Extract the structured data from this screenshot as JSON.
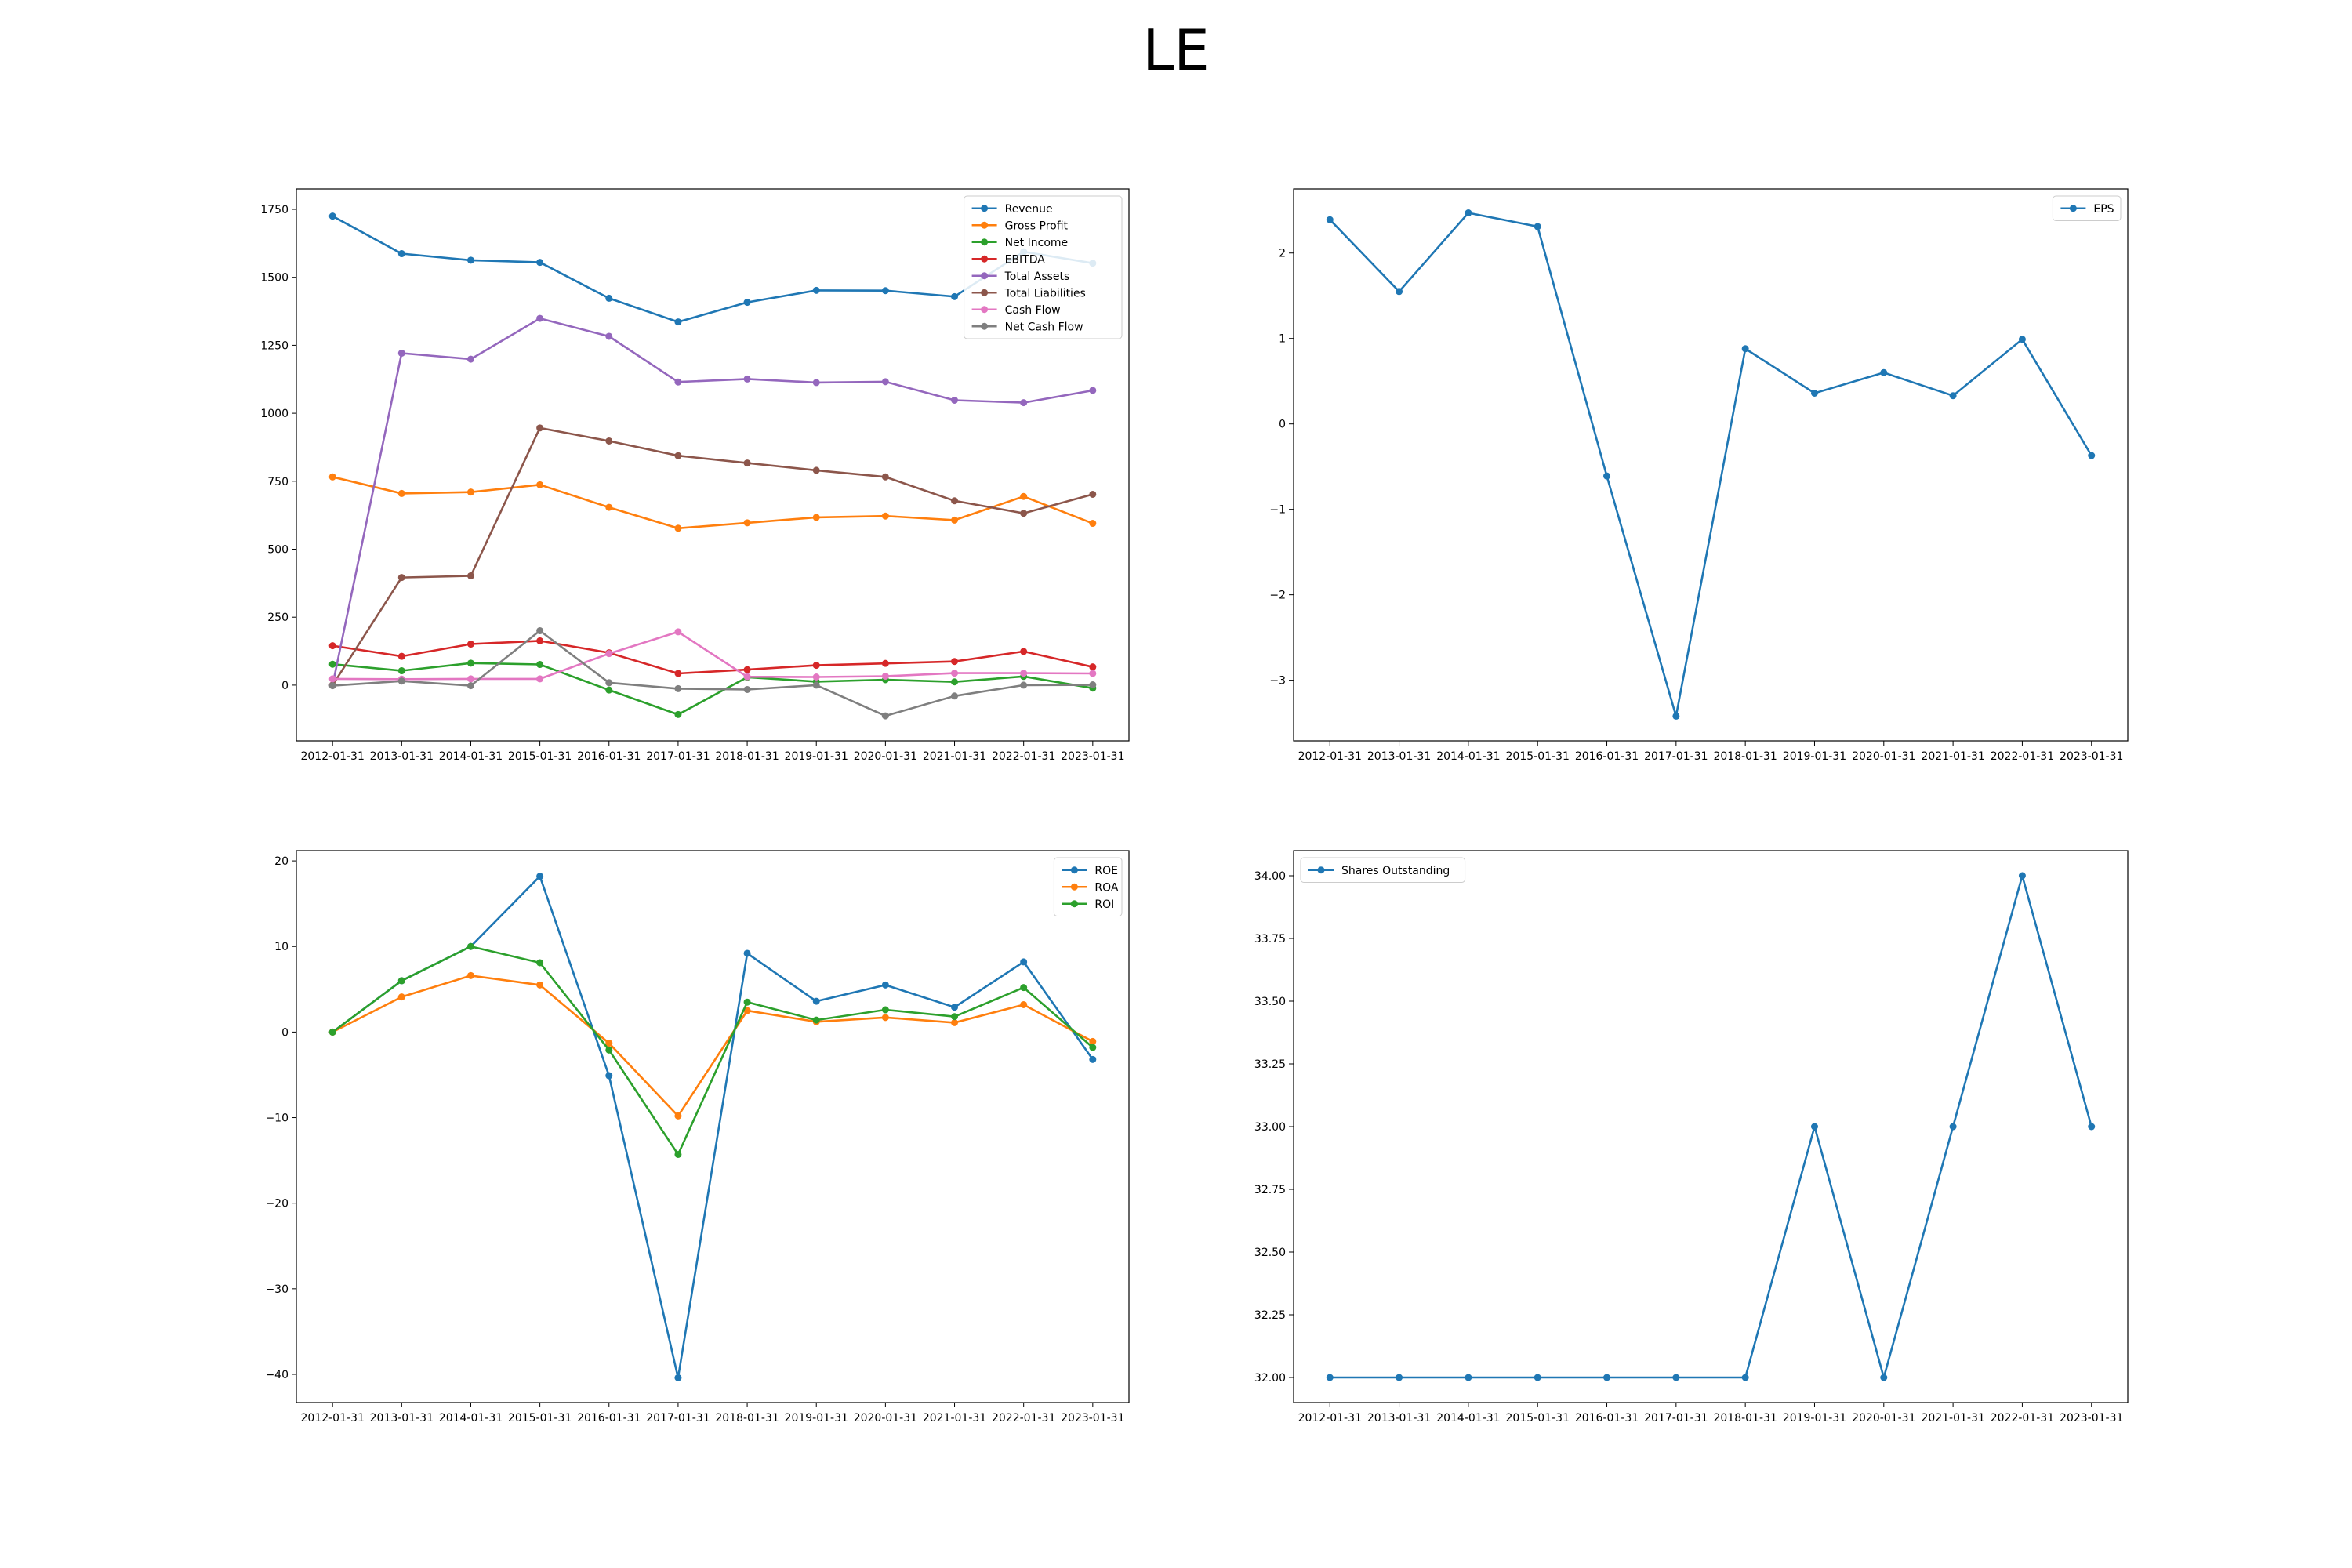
{
  "title": "LE",
  "chart_data": [
    {
      "type": "line",
      "x": [
        "2012-01-31",
        "2013-01-31",
        "2014-01-31",
        "2015-01-31",
        "2016-01-31",
        "2017-01-31",
        "2018-01-31",
        "2019-01-31",
        "2020-01-31",
        "2021-01-31",
        "2022-01-31",
        "2023-01-31"
      ],
      "ylim": [
        -205,
        1825
      ],
      "yticks": [
        0,
        250,
        500,
        750,
        1000,
        1250,
        1500,
        1750
      ],
      "legend_position": "top-right",
      "grid": false,
      "series": [
        {
          "name": "Revenue",
          "color": "#1f77b4",
          "values": [
            1725,
            1587,
            1563,
            1555,
            1423,
            1336,
            1408,
            1452,
            1451,
            1429,
            1594,
            1552
          ]
        },
        {
          "name": "Gross Profit",
          "color": "#ff7f0e",
          "values": [
            766,
            705,
            710,
            737,
            654,
            577,
            597,
            617,
            622,
            607,
            694,
            595
          ]
        },
        {
          "name": "Net Income",
          "color": "#2ca02c",
          "values": [
            77,
            53,
            81,
            76,
            -18,
            -108,
            29,
            13,
            20,
            12,
            32,
            -11
          ]
        },
        {
          "name": "EBITDA",
          "color": "#d62728",
          "values": [
            145,
            106,
            151,
            163,
            119,
            43,
            57,
            73,
            80,
            87,
            124,
            67
          ]
        },
        {
          "name": "Total Assets",
          "color": "#9467bd",
          "values": [
            0,
            1221,
            1199,
            1349,
            1283,
            1115,
            1126,
            1113,
            1116,
            1048,
            1039,
            1084
          ]
        },
        {
          "name": "Total Liabilities",
          "color": "#8c564b",
          "values": [
            0,
            396,
            402,
            946,
            898,
            844,
            817,
            790,
            766,
            678,
            632,
            702
          ]
        },
        {
          "name": "Cash Flow",
          "color": "#e377c2",
          "values": [
            23,
            22,
            23,
            23,
            116,
            196,
            31,
            30,
            33,
            44,
            44,
            43
          ]
        },
        {
          "name": "Net Cash Flow",
          "color": "#7f7f7f",
          "values": [
            -2,
            15,
            -2,
            200,
            9,
            -13,
            -16,
            0,
            -113,
            -40,
            0,
            1
          ]
        }
      ]
    },
    {
      "type": "line",
      "x": [
        "2012-01-31",
        "2013-01-31",
        "2014-01-31",
        "2015-01-31",
        "2016-01-31",
        "2017-01-31",
        "2018-01-31",
        "2019-01-31",
        "2020-01-31",
        "2021-01-31",
        "2022-01-31",
        "2023-01-31"
      ],
      "ylim": [
        -3.71,
        2.75
      ],
      "yticks": [
        -3,
        -2,
        -1,
        0,
        1,
        2
      ],
      "legend_position": "top-right",
      "grid": false,
      "series": [
        {
          "name": "EPS",
          "color": "#1f77b4",
          "values": [
            2.39,
            1.55,
            2.47,
            2.31,
            -0.61,
            -3.42,
            0.88,
            0.36,
            0.6,
            0.33,
            0.99,
            -0.37
          ]
        }
      ]
    },
    {
      "type": "line",
      "x": [
        "2012-01-31",
        "2013-01-31",
        "2014-01-31",
        "2015-01-31",
        "2016-01-31",
        "2017-01-31",
        "2018-01-31",
        "2019-01-31",
        "2020-01-31",
        "2021-01-31",
        "2022-01-31",
        "2023-01-31"
      ],
      "ylim": [
        -43.3,
        21.2
      ],
      "yticks": [
        -40,
        -30,
        -20,
        -10,
        0,
        10,
        20
      ],
      "legend_position": "top-right",
      "grid": false,
      "series": [
        {
          "name": "ROE",
          "color": "#1f77b4",
          "values": [
            0,
            6.0,
            10.0,
            18.2,
            -5.1,
            -40.4,
            9.2,
            3.6,
            5.5,
            2.9,
            8.2,
            -3.2
          ]
        },
        {
          "name": "ROA",
          "color": "#ff7f0e",
          "values": [
            0,
            4.1,
            6.6,
            5.5,
            -1.3,
            -9.8,
            2.5,
            1.2,
            1.7,
            1.1,
            3.2,
            -1.1
          ]
        },
        {
          "name": "ROI",
          "color": "#2ca02c",
          "values": [
            0,
            6.0,
            10.0,
            8.1,
            -2.1,
            -14.3,
            3.5,
            1.4,
            2.6,
            1.8,
            5.2,
            -1.8
          ]
        }
      ]
    },
    {
      "type": "line",
      "x": [
        "2012-01-31",
        "2013-01-31",
        "2014-01-31",
        "2015-01-31",
        "2016-01-31",
        "2017-01-31",
        "2018-01-31",
        "2019-01-31",
        "2020-01-31",
        "2021-01-31",
        "2022-01-31",
        "2023-01-31"
      ],
      "ylim": [
        31.9,
        34.1
      ],
      "yticks": [
        32.0,
        32.25,
        32.5,
        32.75,
        33.0,
        33.25,
        33.5,
        33.75,
        34.0
      ],
      "yticks_decimals": 2,
      "legend_position": "top-left",
      "grid": false,
      "series": [
        {
          "name": "Shares Outstanding",
          "color": "#1f77b4",
          "values": [
            32,
            32,
            32,
            32,
            32,
            32,
            32,
            33,
            32,
            33,
            34,
            33
          ]
        }
      ]
    }
  ]
}
